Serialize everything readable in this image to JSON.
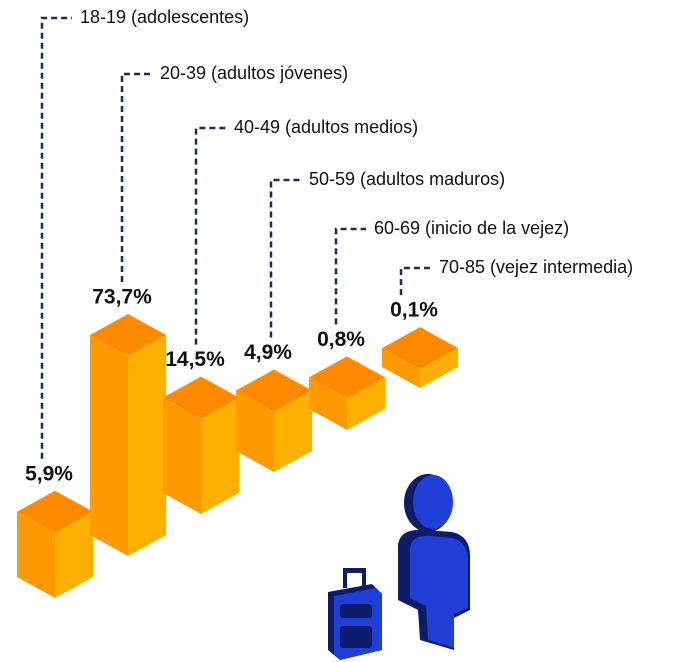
{
  "chart_data": {
    "type": "bar",
    "categories": [
      "18-19 (adolescentes)",
      "20-39 (adultos jóvenes)",
      "40-49 (adultos medios)",
      "50-59 (adultos maduros)",
      "60-69 (inicio de la vejez)",
      "70-85 (vejez intermedia)"
    ],
    "values": [
      5.9,
      73.7,
      14.5,
      4.9,
      0.8,
      0.1
    ],
    "value_labels": [
      "5,9%",
      "73,7%",
      "14,5%",
      "4,9%",
      "0,8%",
      "0,1%"
    ],
    "colors": {
      "top": "#ff8a00",
      "left": "#ff9a00",
      "right": "#ffb000"
    }
  }
}
